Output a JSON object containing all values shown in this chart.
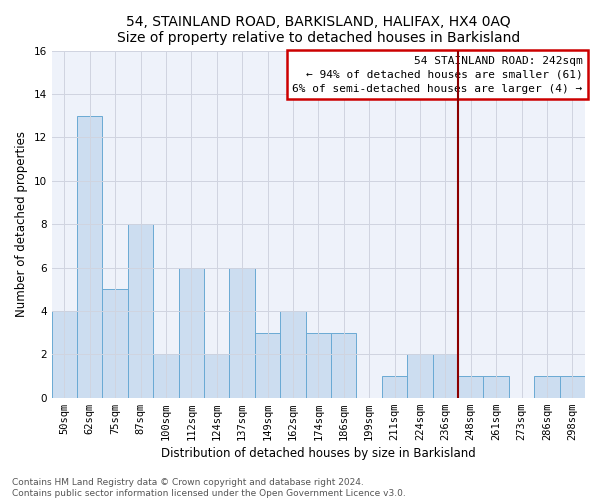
{
  "title": "54, STAINLAND ROAD, BARKISLAND, HALIFAX, HX4 0AQ",
  "subtitle": "Size of property relative to detached houses in Barkisland",
  "xlabel": "Distribution of detached houses by size in Barkisland",
  "ylabel": "Number of detached properties",
  "categories": [
    "50sqm",
    "62sqm",
    "75sqm",
    "87sqm",
    "100sqm",
    "112sqm",
    "124sqm",
    "137sqm",
    "149sqm",
    "162sqm",
    "174sqm",
    "186sqm",
    "199sqm",
    "211sqm",
    "224sqm",
    "236sqm",
    "248sqm",
    "261sqm",
    "273sqm",
    "286sqm",
    "298sqm"
  ],
  "values": [
    4,
    13,
    5,
    8,
    2,
    6,
    2,
    6,
    3,
    4,
    3,
    3,
    0,
    1,
    2,
    2,
    1,
    1,
    0,
    1,
    1
  ],
  "bar_color": "#ccddf0",
  "bar_edge_color": "#6aaad4",
  "ylim": [
    0,
    16
  ],
  "yticks": [
    0,
    2,
    4,
    6,
    8,
    10,
    12,
    14,
    16
  ],
  "property_label": "54 STAINLAND ROAD: 242sqm",
  "annotation_line1": "← 94% of detached houses are smaller (61)",
  "annotation_line2": "6% of semi-detached houses are larger (4) →",
  "vline_bar_index": 15,
  "footer_line1": "Contains HM Land Registry data © Crown copyright and database right 2024.",
  "footer_line2": "Contains public sector information licensed under the Open Government Licence v3.0.",
  "bg_color": "#eef2fa",
  "grid_color": "#d0d4e0",
  "title_fontsize": 10,
  "subtitle_fontsize": 9,
  "xlabel_fontsize": 8.5,
  "ylabel_fontsize": 8.5,
  "tick_fontsize": 7.5,
  "annot_fontsize": 8,
  "footer_fontsize": 6.5
}
